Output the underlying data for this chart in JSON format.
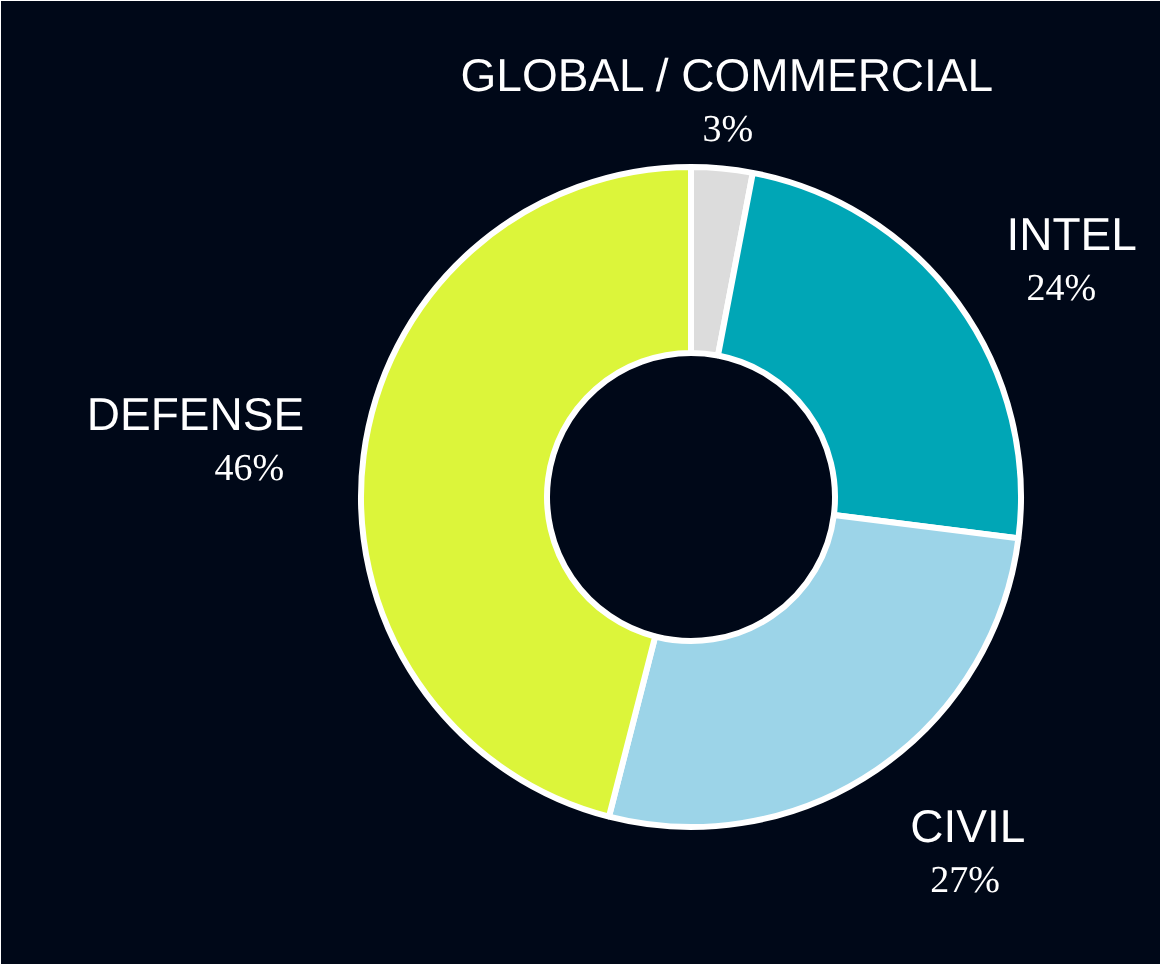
{
  "chart_data": {
    "type": "donut",
    "categories": [
      "GLOBAL / COMMERCIAL",
      "INTEL",
      "CIVIL",
      "DEFENSE"
    ],
    "values": [
      3,
      24,
      27,
      46
    ],
    "colors": [
      "#dcdcdc",
      "#00a6b6",
      "#9cd4e8",
      "#dcf53a"
    ],
    "value_labels": [
      "3%",
      "24%",
      "27%",
      "46%"
    ]
  }
}
